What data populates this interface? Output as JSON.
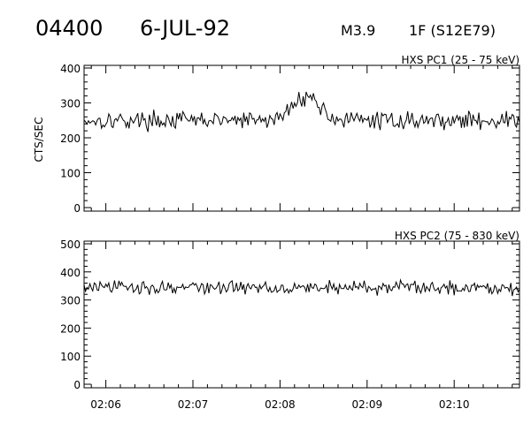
{
  "header": {
    "event_id": "04400",
    "date": "6-JUL-92",
    "flare_class": "M3.9",
    "optical": "1F (S12E79)"
  },
  "chart_data": [
    {
      "type": "line",
      "title": "HXS PC1 (25 - 75 keV)",
      "ylabel": "CTS/SEC",
      "xlabel": "",
      "ylim": [
        0,
        400
      ],
      "y_ticks": [
        0,
        100,
        200,
        300,
        400
      ],
      "y_tick_labels": [
        "0",
        "100",
        "200",
        "300",
        "400"
      ],
      "x_range_minutes": [
        125.75,
        130.75
      ],
      "x_ticks": [
        126,
        127,
        128,
        129,
        130
      ],
      "x_tick_labels": [
        "02:06",
        "02:07",
        "02:08",
        "02:09",
        "02:10"
      ],
      "series": [
        {
          "baseline": 250,
          "noise": 22,
          "peak": {
            "time_minutes": 128.3,
            "amplitude": 70,
            "width_minutes": 0.15
          }
        }
      ]
    },
    {
      "type": "line",
      "title": "HXS PC2 (75 - 830 keV)",
      "ylabel": "",
      "xlabel": "",
      "ylim": [
        0,
        500
      ],
      "y_ticks": [
        0,
        100,
        200,
        300,
        400,
        500
      ],
      "y_tick_labels": [
        "0",
        "100",
        "200",
        "300",
        "400",
        "500"
      ],
      "x_range_minutes": [
        125.75,
        130.75
      ],
      "x_ticks": [
        126,
        127,
        128,
        129,
        130
      ],
      "x_tick_labels": [
        "02:06",
        "02:07",
        "02:08",
        "02:09",
        "02:10"
      ],
      "series": [
        {
          "baseline": 345,
          "noise": 22,
          "peak": null
        }
      ]
    }
  ]
}
